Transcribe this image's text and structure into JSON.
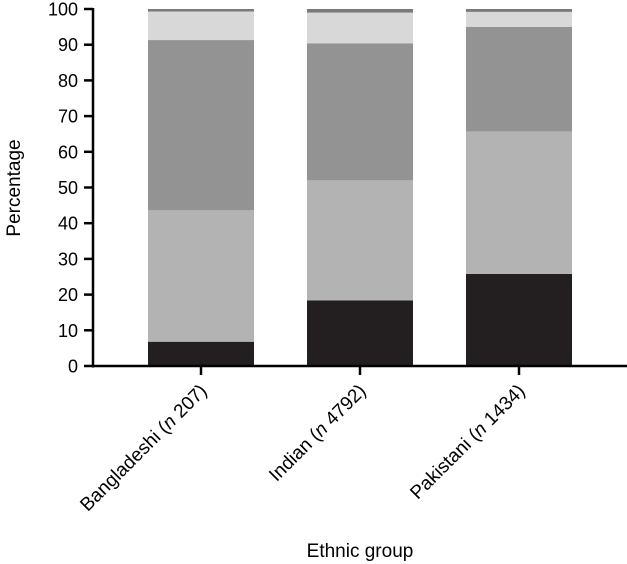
{
  "chart_data": {
    "type": "bar",
    "stacked": true,
    "categories": [
      "Bangladeshi (n 207)",
      "Indian (n 4792)",
      "Pakistani (n 1434)"
    ],
    "category_parts": [
      {
        "prefix": "Bangladeshi (",
        "italic": "n",
        "suffix": " 207)"
      },
      {
        "prefix": "Indian (",
        "italic": "n",
        "suffix": " 4792)"
      },
      {
        "prefix": "Pakistani (",
        "italic": "n",
        "suffix": " 1434)"
      }
    ],
    "series": [
      {
        "values": [
          6.8,
          18.4,
          25.8
        ],
        "color": "#231f20"
      },
      {
        "values": [
          36.8,
          33.6,
          39.9
        ],
        "color": "#b3b3b3"
      },
      {
        "values": [
          47.7,
          38.4,
          29.3
        ],
        "color": "#939393"
      },
      {
        "values": [
          8.0,
          8.6,
          4.2
        ],
        "color": "#d8d8d8"
      },
      {
        "values": [
          0.7,
          1.0,
          0.8
        ],
        "color": "#7a7a7a"
      }
    ],
    "xlabel": "Ethnic group",
    "ylabel": "Percentage",
    "ylim": [
      0,
      100
    ],
    "yticks": [
      0,
      10,
      20,
      30,
      40,
      50,
      60,
      70,
      80,
      90,
      100
    ],
    "grid": false,
    "legend": "none"
  }
}
